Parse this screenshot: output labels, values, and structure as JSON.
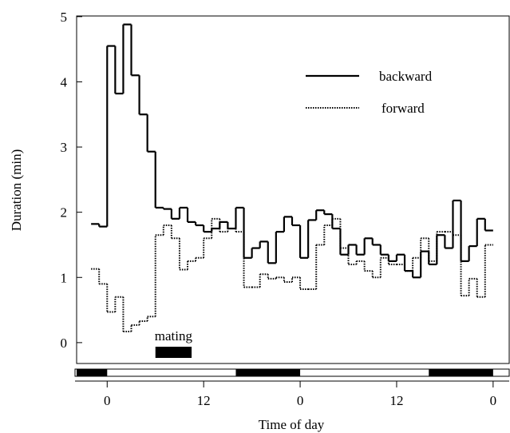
{
  "chart_data": {
    "type": "step",
    "y_label": "Duration (min)",
    "x_label": "Time of day",
    "x": [
      -2,
      -1,
      0,
      1,
      2,
      3,
      4,
      5,
      6,
      7,
      8,
      9,
      10,
      11,
      12,
      13,
      14,
      15,
      16,
      17,
      18,
      19,
      20,
      21,
      22,
      23,
      24,
      25,
      26,
      27,
      28,
      29,
      30,
      31,
      32,
      33,
      34,
      35,
      36,
      37,
      38,
      39,
      40,
      41,
      42,
      43,
      44,
      45,
      46,
      47
    ],
    "series": [
      {
        "name": "backward",
        "color": "#000000",
        "style": "solid",
        "values": [
          1.82,
          1.78,
          4.55,
          3.82,
          4.88,
          4.1,
          3.5,
          2.93,
          2.07,
          2.05,
          1.9,
          2.07,
          1.85,
          1.8,
          1.7,
          1.75,
          1.85,
          1.75,
          2.07,
          1.3,
          1.45,
          1.55,
          1.22,
          1.7,
          1.93,
          1.8,
          1.3,
          1.88,
          2.03,
          1.97,
          1.75,
          1.35,
          1.5,
          1.35,
          1.6,
          1.5,
          1.35,
          1.25,
          1.35,
          1.1,
          1.0,
          1.4,
          1.2,
          1.65,
          1.45,
          2.18,
          1.25,
          1.48,
          1.9,
          1.72
        ]
      },
      {
        "name": "forward",
        "color": "#000000",
        "style": "dotted",
        "values": [
          1.13,
          0.9,
          0.47,
          0.7,
          0.17,
          0.27,
          0.33,
          0.4,
          1.65,
          1.8,
          1.6,
          1.12,
          1.25,
          1.3,
          1.6,
          1.9,
          1.7,
          1.75,
          1.7,
          0.85,
          0.85,
          1.05,
          0.98,
          1.0,
          0.93,
          1.0,
          0.82,
          0.82,
          1.5,
          1.8,
          1.9,
          1.45,
          1.2,
          1.25,
          1.1,
          1.0,
          1.3,
          1.2,
          1.2,
          1.1,
          1.3,
          1.6,
          1.25,
          1.7,
          1.7,
          1.65,
          0.72,
          0.98,
          0.7,
          1.5
        ]
      }
    ],
    "xlim": [
      -3.8,
      50
    ],
    "ylim": [
      -0.32,
      5.01
    ],
    "yticks": [
      0,
      1,
      2,
      3,
      4,
      5
    ],
    "xticks": [
      0,
      12,
      {
        "value": 24,
        "label": "0"
      },
      {
        "value": 36,
        "label": "12"
      },
      {
        "value": 48,
        "label": "0"
      }
    ],
    "dark_periods": [
      [
        -3.8,
        0
      ],
      [
        16,
        24
      ],
      [
        40,
        48
      ]
    ],
    "mating": {
      "label": "mating",
      "start": 6,
      "end": 10.5
    }
  }
}
